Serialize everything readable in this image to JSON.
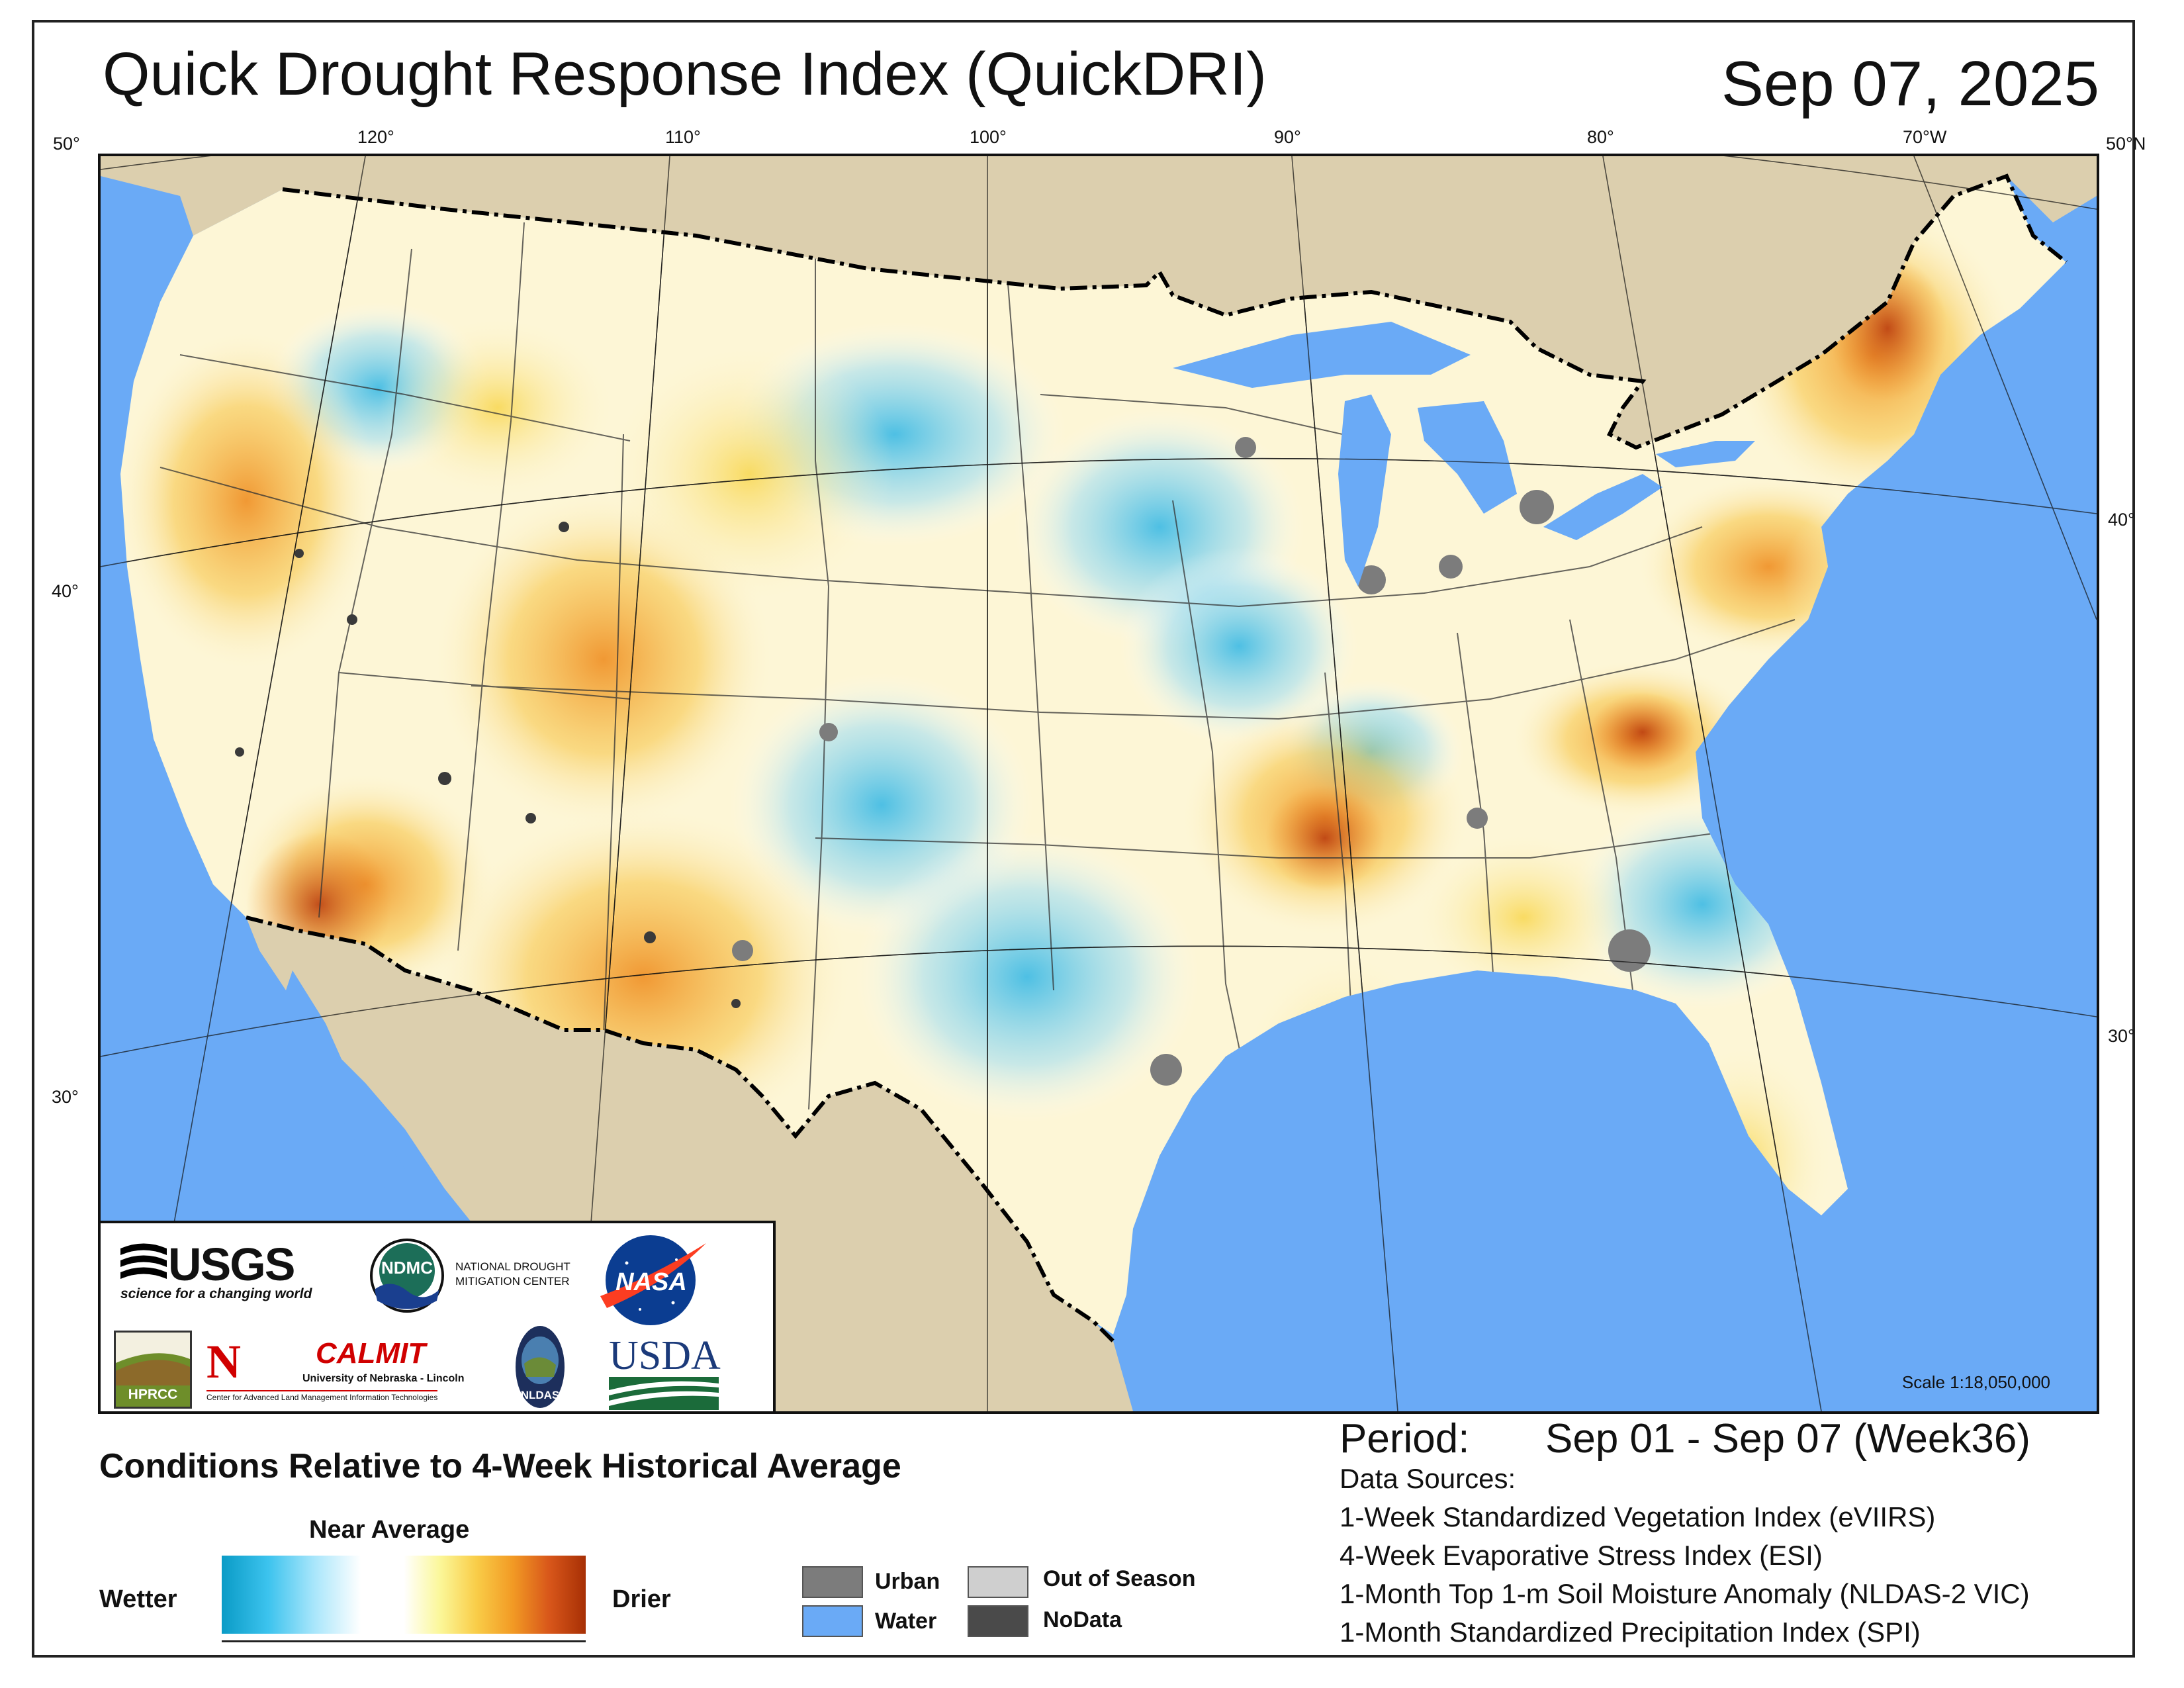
{
  "title": "Quick Drought Response Index (QuickDRI)",
  "date": "Sep 07, 2025",
  "graticule": {
    "top_longitudes": [
      "120°",
      "110°",
      "100°",
      "90°",
      "80°",
      "70°W"
    ],
    "top_left_corner": "50°",
    "top_right_corner": "50°N",
    "left_latitudes": [
      "40°",
      "30°"
    ],
    "right_latitudes": [
      "40°",
      "30°"
    ]
  },
  "scale": "Scale 1:18,050,000",
  "logos": {
    "usgs": "USGS",
    "usgs_tagline": "science for a changing world",
    "ndmc": "NDMC",
    "ndmc_name_1": "NATIONAL DROUGHT",
    "ndmc_name_2": "MITIGATION CENTER",
    "nasa": "NASA",
    "hprcc": "HPRCC",
    "calmit": "CALMIT",
    "calmit_univ": "University of Nebraska - Lincoln",
    "calmit_center": "Center for Advanced Land Management Information Technologies",
    "nldas": "NLDAS",
    "usda": "USDA"
  },
  "legend": {
    "title": "Conditions Relative to 4-Week Historical Average",
    "near_average": "Near Average",
    "wetter": "Wetter",
    "drier": "Drier",
    "categories": [
      {
        "label": "Urban",
        "color": "#7c7c7c"
      },
      {
        "label": "Water",
        "color": "#6aaaf6"
      },
      {
        "label": "Out of Season",
        "color": "#cfcfcf"
      },
      {
        "label": "NoData",
        "color": "#4a4a4a"
      }
    ]
  },
  "period": {
    "label": "Period:",
    "value": "Sep 01 - Sep 07 (Week36)"
  },
  "data_sources": {
    "title": "Data Sources:",
    "items": [
      "1-Week Standardized Vegetation Index (eVIIRS)",
      "4-Week Evaporative Stress Index (ESI)",
      "1-Month Top 1-m Soil Moisture Anomaly (NLDAS-2 VIC)",
      "1-Month Standardized Precipitation Index (SPI)"
    ]
  },
  "colors": {
    "land_outside": "#dccfae",
    "water": "#6aaaf6",
    "conus_base": "#fdf6d6"
  }
}
